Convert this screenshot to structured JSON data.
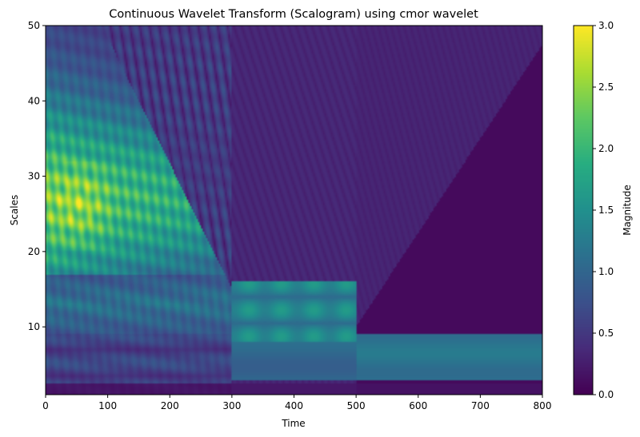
{
  "chart_data": {
    "type": "heatmap",
    "title": "Continuous Wavelet Transform (Scalogram) using cmor wavelet",
    "xlabel": "Time",
    "ylabel": "Scales",
    "xlim": [
      0,
      800
    ],
    "ylim": [
      1,
      50
    ],
    "xticks": [
      0,
      100,
      200,
      300,
      400,
      500,
      600,
      700,
      800
    ],
    "yticks": [
      10,
      20,
      30,
      40,
      50
    ],
    "colormap": "viridis",
    "colorbar": {
      "label": "Magnitude",
      "range": [
        0.0,
        3.0
      ],
      "ticks": [
        "0.0",
        "0.5",
        "1.0",
        "1.5",
        "2.0",
        "2.5",
        "3.0"
      ]
    },
    "description_regions": [
      {
        "time": [
          0,
          300
        ],
        "scales": [
          15,
          50
        ],
        "magnitude": "high, peak ≈ 2.8 near time 40–70, scale 22–30"
      },
      {
        "time": [
          300,
          500
        ],
        "scales": [
          8,
          16
        ],
        "magnitude": "≈ 1.4–1.8"
      },
      {
        "time": [
          500,
          800
        ],
        "scales": [
          3,
          9
        ],
        "magnitude": "≈ 1.2"
      },
      {
        "time": [
          400,
          800
        ],
        "scales": [
          10,
          50
        ],
        "magnitude": "≈ 0.0–0.3"
      }
    ]
  }
}
